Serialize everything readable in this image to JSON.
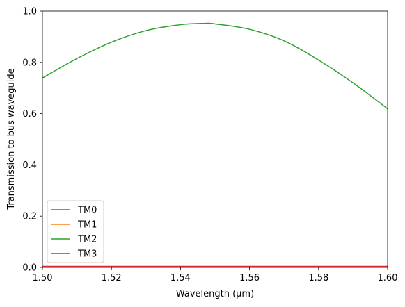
{
  "chart_data": {
    "type": "line",
    "xlabel": "Wavelength (μm)",
    "ylabel": "Transmission to bus waveguide",
    "xlim": [
      1.5,
      1.6
    ],
    "ylim": [
      0.0,
      1.0
    ],
    "grid": false,
    "legend_position": "lower-left",
    "x_ticks": [
      "1.50",
      "1.52",
      "1.54",
      "1.56",
      "1.58",
      "1.60"
    ],
    "y_ticks": [
      "0.0",
      "0.2",
      "0.4",
      "0.6",
      "0.8",
      "1.0"
    ],
    "x": [
      1.5,
      1.51,
      1.52,
      1.53,
      1.54,
      1.547,
      1.55,
      1.56,
      1.57,
      1.58,
      1.59,
      1.6
    ],
    "series": [
      {
        "name": "TM0",
        "color": "#1f77b4",
        "values": [
          0.002,
          0.002,
          0.002,
          0.002,
          0.002,
          0.002,
          0.002,
          0.002,
          0.002,
          0.002,
          0.002,
          0.002
        ]
      },
      {
        "name": "TM1",
        "color": "#ff7f0e",
        "values": [
          0.003,
          0.003,
          0.003,
          0.003,
          0.003,
          0.003,
          0.003,
          0.003,
          0.003,
          0.003,
          0.003,
          0.003
        ]
      },
      {
        "name": "TM2",
        "color": "#2ca02c",
        "values": [
          0.739,
          0.815,
          0.879,
          0.924,
          0.947,
          0.952,
          0.95,
          0.929,
          0.884,
          0.809,
          0.72,
          0.619
        ]
      },
      {
        "name": "TM3",
        "color": "#d62728",
        "values": [
          0.004,
          0.004,
          0.004,
          0.004,
          0.004,
          0.004,
          0.004,
          0.004,
          0.004,
          0.004,
          0.004,
          0.004
        ]
      }
    ]
  }
}
